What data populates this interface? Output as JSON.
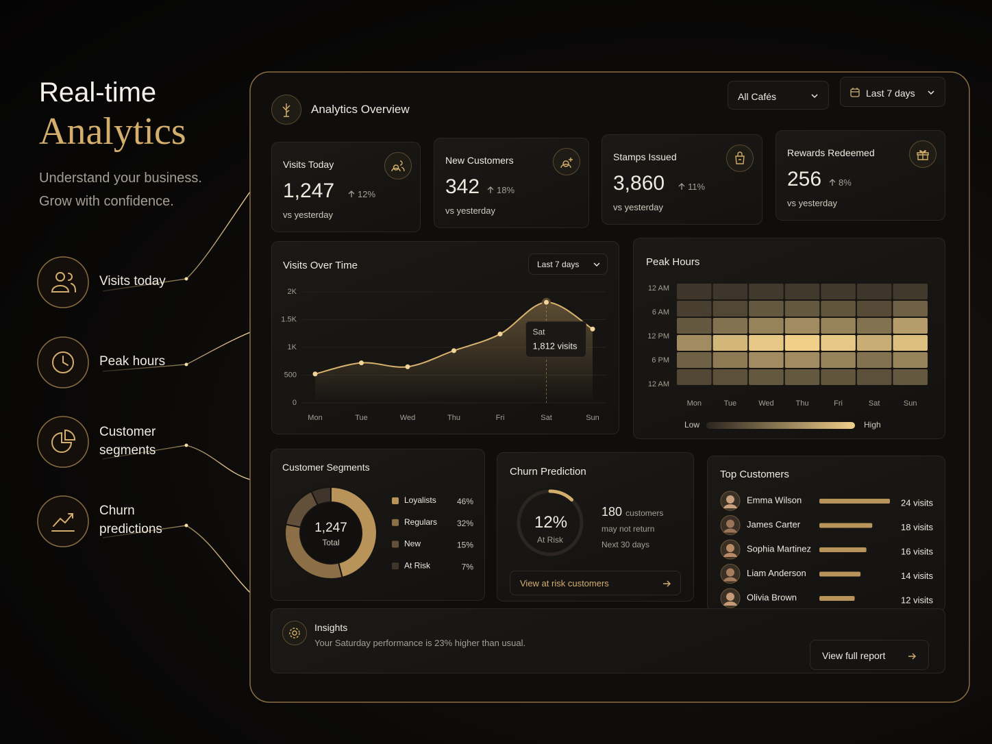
{
  "hero": {
    "title": "Real-time",
    "highlight": "Analytics",
    "subtitle": [
      "Understand your business.",
      "Grow with confidence."
    ],
    "features": [
      "Visits today",
      "Peak hours",
      "Customer segments",
      "Churn predictions"
    ]
  },
  "header": {
    "title": "Analytics Overview",
    "filters": [
      "All Cafés",
      "Last 7 days"
    ]
  },
  "kpis": [
    {
      "label": "Visits Today",
      "value": "1,247",
      "change": "12%",
      "note": "vs yesterday"
    },
    {
      "label": "New Customers",
      "value": "342",
      "change": "18%",
      "note": "vs yesterday"
    },
    {
      "label": "Stamps Issued",
      "value": "3,860",
      "change": "11%",
      "note": "vs yesterday"
    },
    {
      "label": "Rewards Redeemed",
      "value": "256",
      "change": "8%",
      "note": "vs yesterday"
    }
  ],
  "chart_data": [
    {
      "type": "line",
      "title": "Visits Over Time",
      "range": "Last 7 days",
      "categories": [
        "Mon",
        "Tue",
        "Wed",
        "Thu",
        "Fri",
        "Sat",
        "Sun"
      ],
      "values": [
        520,
        720,
        650,
        940,
        1240,
        1812,
        1330
      ],
      "color": "#d9b26e",
      "ylim": [
        0,
        2000
      ],
      "yticks": [
        0,
        500,
        {
          "value": 1000,
          "label": "1K"
        },
        {
          "value": 1500,
          "label": "1.5K"
        },
        {
          "value": 2000,
          "label": "2K"
        }
      ],
      "annotation": {
        "label": "Sat",
        "text": "1,812 visits"
      }
    },
    {
      "type": "heatmap",
      "title": "Peak Hours",
      "categories": [
        "Mon",
        "Tue",
        "Wed",
        "Thu",
        "Fri",
        "Sat",
        "Sun"
      ],
      "y_labels": [
        "12 AM",
        "6 AM",
        "12 PM",
        "6 PM",
        "12 AM"
      ],
      "z": [
        [
          10,
          10,
          12,
          12,
          12,
          10,
          12
        ],
        [
          15,
          20,
          30,
          30,
          28,
          22,
          35
        ],
        [
          30,
          45,
          55,
          60,
          55,
          45,
          70
        ],
        [
          60,
          85,
          95,
          100,
          95,
          80,
          90
        ],
        [
          35,
          50,
          60,
          60,
          55,
          45,
          55
        ],
        [
          20,
          25,
          30,
          30,
          28,
          25,
          30
        ]
      ],
      "color": "#f0cf8a",
      "legend": [
        "Low",
        "High"
      ]
    },
    {
      "type": "donut",
      "title": "Customer Segments",
      "categories": [
        "Loyalists",
        "Regulars",
        "New",
        "At Risk"
      ],
      "values": [
        46,
        32,
        15,
        7
      ],
      "value_labels": [
        "46%",
        "32%",
        "15%",
        "7%"
      ],
      "colors": [
        "#b8935a",
        "#8c6f46",
        "#62503a",
        "#40352a"
      ],
      "center_value": "1,247",
      "center_label": "Total"
    },
    {
      "type": "bar",
      "orientation": "horizontal",
      "title": "Top Customers",
      "categories": [
        "Emma Wilson",
        "James Carter",
        "Sophia Martinez",
        "Liam Anderson",
        "Olivia Brown"
      ],
      "values": [
        24,
        18,
        16,
        14,
        12
      ],
      "value_labels": [
        "24 visits",
        "18 visits",
        "16 visits",
        "14 visits",
        "12 visits"
      ],
      "color": "#b8935a"
    }
  ],
  "churn": {
    "title": "Churn Prediction",
    "risk": 12,
    "risk_label": "12%",
    "risk_caption": "At Risk",
    "count": "180",
    "count_unit": "customers",
    "line2": "may not return",
    "line3": "Next 30 days",
    "button": "View at risk customers"
  },
  "insights": {
    "title": "Insights",
    "text": "Your Saturday performance is 23% higher than usual.",
    "button": "View full report"
  }
}
